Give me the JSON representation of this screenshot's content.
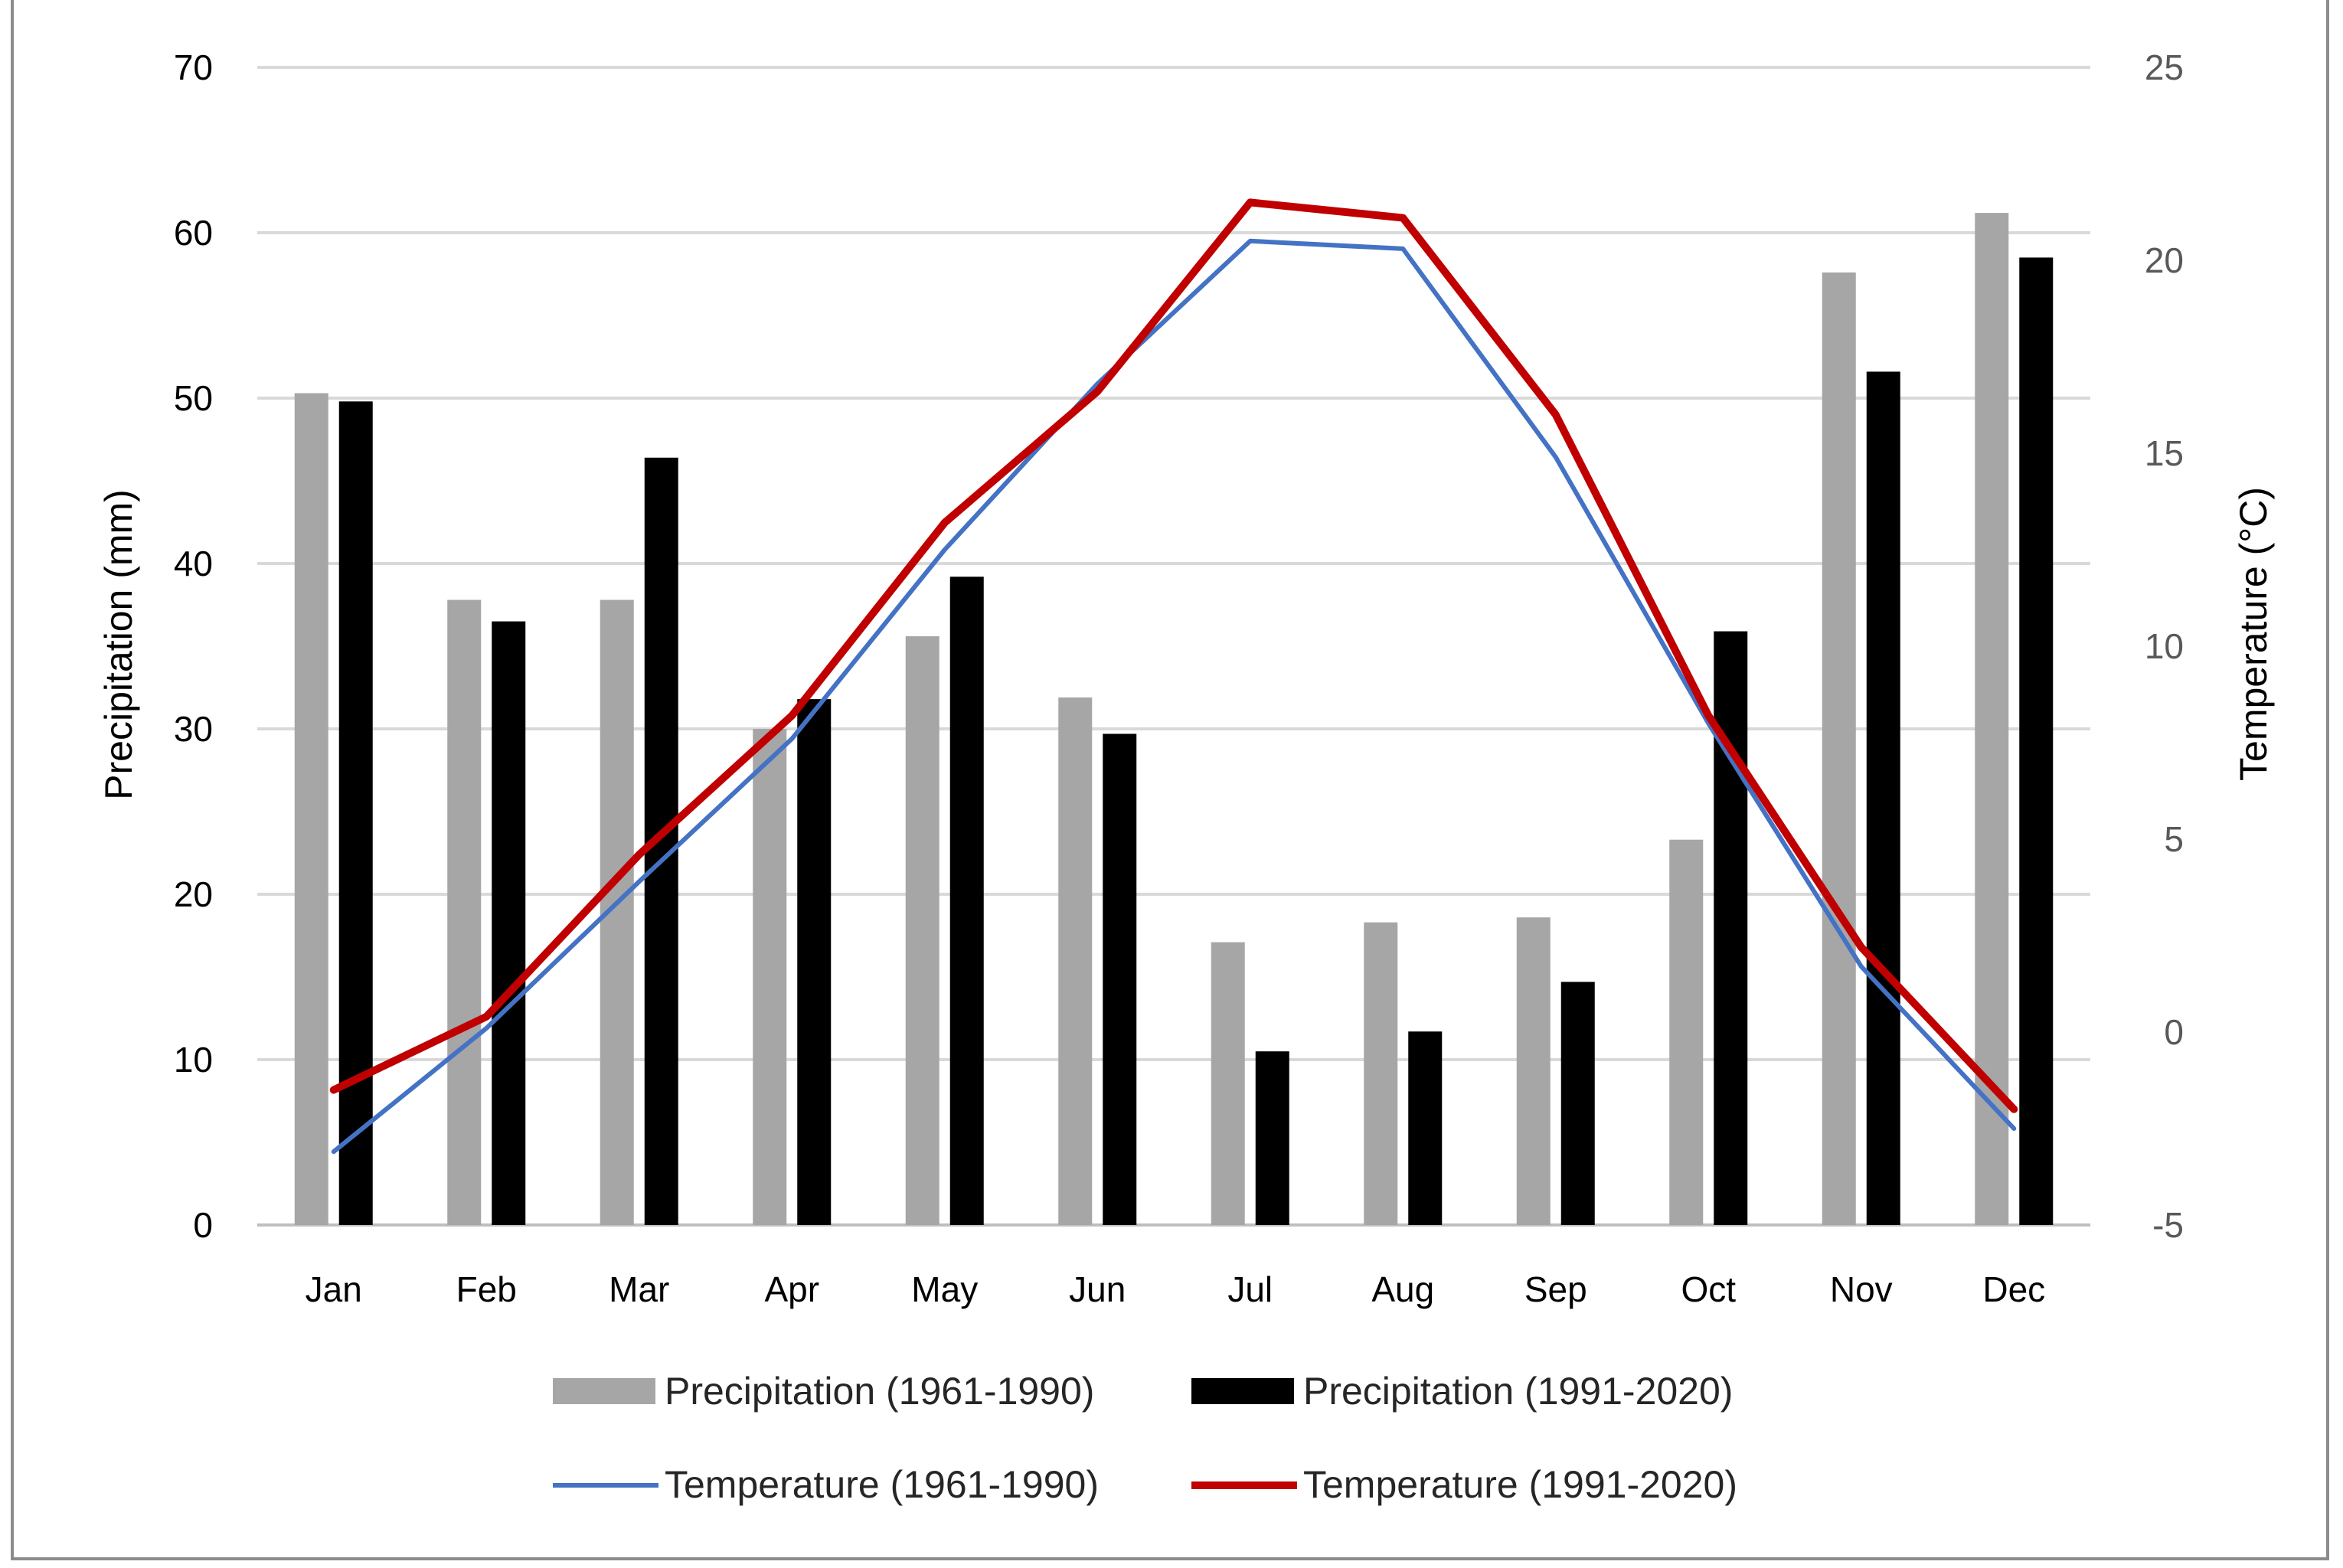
{
  "chart_data": {
    "type": "bar",
    "categories": [
      "Jan",
      "Feb",
      "Mar",
      "Apr",
      "May",
      "Jun",
      "Jul",
      "Aug",
      "Sep",
      "Oct",
      "Nov",
      "Dec"
    ],
    "series": [
      {
        "name": "Precipitation (1961-1990)",
        "kind": "bar",
        "axis": "left",
        "color": "#a6a6a6",
        "values": [
          50.3,
          37.8,
          37.8,
          30.0,
          35.6,
          31.9,
          17.1,
          18.3,
          18.6,
          23.3,
          57.6,
          61.2
        ]
      },
      {
        "name": "Precipitation (1991-2020)",
        "kind": "bar",
        "axis": "left",
        "color": "#000000",
        "values": [
          49.8,
          36.5,
          46.4,
          31.8,
          39.2,
          29.7,
          10.5,
          11.7,
          14.7,
          35.9,
          51.6,
          58.5
        ]
      },
      {
        "name": "Temperature (1961-1990)",
        "kind": "line",
        "axis": "right",
        "color": "#4472c4",
        "values": [
          -3.1,
          0.1,
          3.9,
          7.6,
          12.5,
          16.8,
          20.5,
          20.3,
          14.9,
          8.0,
          1.7,
          -2.5
        ]
      },
      {
        "name": "Temperature (1991-2020)",
        "kind": "line",
        "axis": "right",
        "color": "#c00000",
        "values": [
          -1.5,
          0.4,
          4.6,
          8.2,
          13.2,
          16.6,
          21.5,
          21.1,
          16.0,
          8.2,
          2.2,
          -2.0
        ]
      }
    ],
    "left_axis": {
      "label": "Precipitation (mm)",
      "ylim": [
        0,
        70
      ],
      "ticks": [
        "0",
        "10",
        "20",
        "30",
        "40",
        "50",
        "60",
        "70"
      ]
    },
    "right_axis": {
      "label": "Temperature (°C)",
      "ylim": [
        -5,
        25
      ],
      "ticks": [
        "-5",
        "0",
        "5",
        "10",
        "15",
        "20",
        "25"
      ]
    },
    "grid": true,
    "legend_position": "bottom"
  }
}
